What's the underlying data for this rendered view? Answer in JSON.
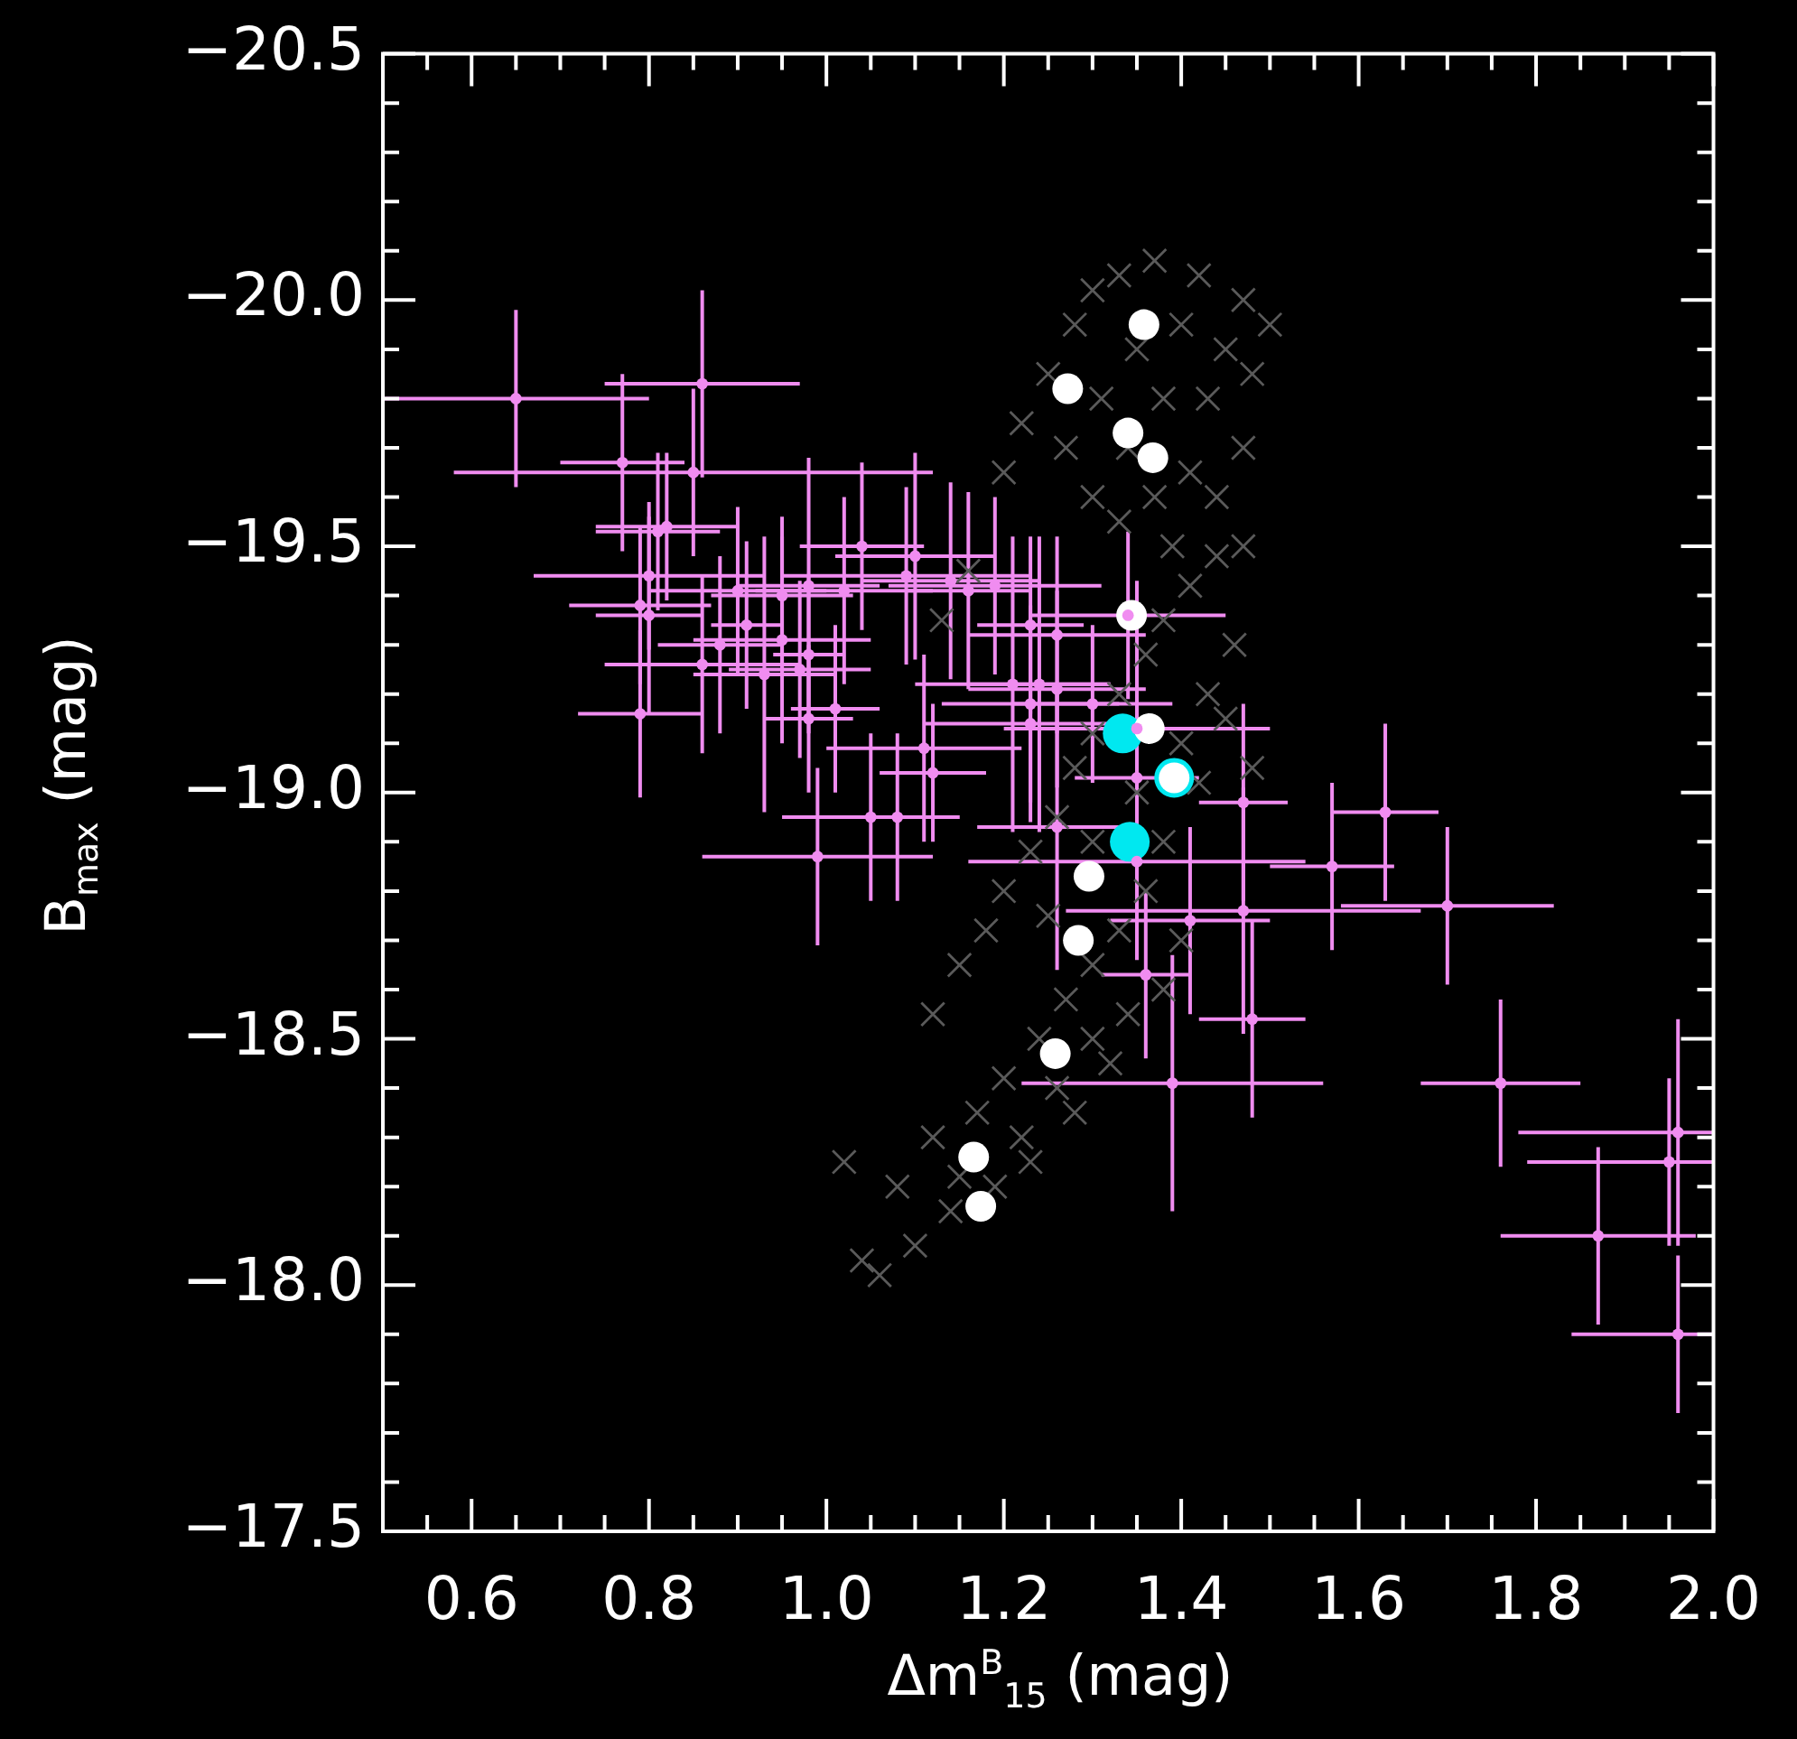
{
  "chart_data": {
    "type": "scatter",
    "xlabel": "Δm$^{B}$$_{15}$ (mag)",
    "ylabel": "B$_{max}$ (mag)",
    "xlim": [
      0.5,
      2.0
    ],
    "ylim": [
      -17.5,
      -20.5
    ],
    "xticks": [
      0.6,
      0.8,
      {
        "value": 1.0,
        "label": "1.0"
      },
      1.2,
      1.4,
      1.6,
      1.8,
      {
        "value": 2.0,
        "label": "2.0"
      }
    ],
    "yticks": [
      {
        "value": -20.5,
        "label": "−20.5"
      },
      {
        "value": -20.0,
        "label": "−20.0"
      },
      {
        "value": -19.5,
        "label": "−19.5"
      },
      {
        "value": -19.0,
        "label": "−19.0"
      },
      {
        "value": -18.5,
        "label": "−18.5"
      },
      {
        "value": -18.0,
        "label": "−18.0"
      },
      {
        "value": -17.5,
        "label": "−17.5"
      }
    ],
    "grid": false,
    "legend": false,
    "series": [
      {
        "color": "#5a5a5a",
        "marker": "cross",
        "x": [
          1.2,
          1.22,
          1.25,
          1.28,
          1.3,
          1.33,
          1.37,
          1.42,
          1.47,
          1.5,
          1.27,
          1.31,
          1.35,
          1.4,
          1.45,
          1.48,
          1.3,
          1.34,
          1.38,
          1.43,
          1.47,
          1.33,
          1.37,
          1.41,
          1.44,
          1.39,
          1.13,
          1.16,
          1.12,
          1.15,
          1.18,
          1.2,
          1.23,
          1.26,
          1.28,
          1.3,
          1.33,
          1.36,
          1.38,
          1.41,
          1.44,
          1.47,
          1.25,
          1.3,
          1.35,
          1.4,
          1.43,
          1.46,
          1.38,
          1.42,
          1.48,
          1.45,
          1.02,
          1.04,
          1.06,
          1.1,
          1.14,
          1.08,
          1.12,
          1.17,
          1.2,
          1.24,
          1.27,
          1.3,
          1.33,
          1.36,
          1.22,
          1.26,
          1.3,
          1.34,
          1.38,
          1.4,
          1.15,
          1.19,
          1.23,
          1.28,
          1.32
        ],
        "values": [
          -19.65,
          -19.75,
          -19.85,
          -19.95,
          -20.02,
          -20.05,
          -20.08,
          -20.05,
          -20.0,
          -19.95,
          -19.7,
          -19.8,
          -19.9,
          -19.95,
          -19.9,
          -19.85,
          -19.6,
          -19.7,
          -19.8,
          -19.8,
          -19.7,
          -19.55,
          -19.6,
          -19.65,
          -19.6,
          -19.5,
          -19.35,
          -19.45,
          -18.55,
          -18.65,
          -18.72,
          -18.8,
          -18.88,
          -18.95,
          -19.05,
          -19.12,
          -19.2,
          -19.28,
          -19.35,
          -19.42,
          -19.48,
          -19.5,
          -18.75,
          -18.9,
          -19.0,
          -19.1,
          -19.2,
          -19.3,
          -18.9,
          -19.02,
          -19.05,
          -19.15,
          -18.25,
          -18.05,
          -18.02,
          -18.08,
          -18.15,
          -18.2,
          -18.3,
          -18.35,
          -18.42,
          -18.5,
          -18.58,
          -18.65,
          -18.72,
          -18.8,
          -18.3,
          -18.4,
          -18.5,
          -18.55,
          -18.6,
          -18.7,
          -18.22,
          -18.2,
          -18.25,
          -18.35,
          -18.45
        ]
      },
      {
        "color": "#00e8f0",
        "marker": "circle",
        "x": [
          1.334,
          1.342,
          1.392
        ],
        "values": [
          -19.12,
          -18.9,
          -19.03
        ]
      },
      {
        "color": "#ffffff",
        "marker": "circle",
        "x": [
          1.358,
          1.272,
          1.34,
          1.368,
          1.344,
          1.364,
          1.392,
          1.296,
          1.284,
          1.258,
          1.166,
          1.174
        ],
        "values": [
          -19.95,
          -19.82,
          -19.73,
          -19.68,
          -19.36,
          -19.13,
          -19.03,
          -18.83,
          -18.7,
          -18.47,
          -18.26,
          -18.16
        ]
      },
      {
        "color": "#f08cf0",
        "marker": "circle",
        "x": [
          0.65,
          0.86,
          0.77,
          0.85,
          1.04,
          0.81,
          0.82,
          0.79,
          0.8,
          0.79,
          0.86,
          0.88,
          0.9,
          0.91,
          0.93,
          0.95,
          0.95,
          0.98,
          0.98,
          0.97,
          0.98,
          1.01,
          1.02,
          1.05,
          0.99,
          0.8,
          1.1,
          1.09,
          1.14,
          1.16,
          1.19,
          1.11,
          1.12,
          1.08,
          1.23,
          1.26,
          1.34,
          1.21,
          1.24,
          1.26,
          1.23,
          1.3,
          1.23,
          1.35,
          1.35,
          1.26,
          1.35,
          1.47,
          1.47,
          1.41,
          1.63,
          1.57,
          1.7,
          1.48,
          1.76,
          1.96,
          1.95,
          1.87,
          1.96,
          1.36,
          1.39
        ],
        "values": [
          -19.8,
          -19.83,
          -19.67,
          -19.65,
          -19.5,
          -19.53,
          -19.54,
          -19.38,
          -19.36,
          -19.16,
          -19.26,
          -19.3,
          -19.41,
          -19.34,
          -19.24,
          -19.31,
          -19.4,
          -19.42,
          -19.28,
          -19.25,
          -19.15,
          -19.17,
          -19.41,
          -18.95,
          -18.87,
          -19.44,
          -19.48,
          -19.44,
          -19.43,
          -19.41,
          -19.42,
          -19.09,
          -19.04,
          -18.95,
          -19.34,
          -19.32,
          -19.36,
          -19.22,
          -19.22,
          -19.21,
          -19.18,
          -19.18,
          -19.14,
          -19.13,
          -19.03,
          -18.93,
          -18.86,
          -18.98,
          -18.76,
          -18.74,
          -18.96,
          -18.85,
          -18.77,
          -18.54,
          -18.41,
          -18.31,
          -18.25,
          -18.1,
          -17.9,
          -18.63,
          -18.41
        ],
        "xerrors": [
          0.15,
          0.11,
          0.07,
          0.27,
          0.07,
          0.07,
          0.08,
          0.08,
          0.06,
          0.07,
          0.11,
          0.07,
          0.1,
          0.04,
          0.08,
          0.1,
          0.08,
          0.08,
          0.04,
          0.08,
          0.05,
          0.05,
          0.1,
          0.1,
          0.13,
          0.13,
          0.09,
          0.14,
          0.1,
          0.07,
          0.12,
          0.11,
          0.06,
          0.07,
          0.06,
          0.1,
          0.11,
          0.11,
          0.08,
          0.1,
          0.1,
          0.09,
          0.12,
          0.15,
          0.07,
          0.09,
          0.19,
          0.05,
          0.2,
          0.09,
          0.06,
          0.07,
          0.12,
          0.06,
          0.09,
          [
            1.78,
            2.0
          ],
          [
            1.79,
            2.0
          ],
          0.11,
          [
            1.84,
            2.0
          ],
          0.05,
          0.17
        ],
        "errors": [
          0.18,
          0.19,
          0.18,
          0.17,
          0.17,
          0.16,
          0.15,
          0.16,
          0.2,
          0.17,
          0.18,
          0.18,
          0.17,
          0.17,
          0.28,
          0.21,
          0.16,
          0.26,
          0.16,
          0.18,
          0.15,
          0.17,
          0.19,
          0.17,
          0.18,
          0.15,
          0.21,
          0.18,
          0.2,
          0.2,
          0.18,
          0.19,
          0.14,
          0.17,
          0.18,
          0.2,
          0.17,
          0.3,
          0.3,
          0.2,
          0.2,
          0.16,
          0.2,
          0.3,
          0.2,
          0.29,
          0.2,
          0.2,
          0.25,
          0.19,
          0.18,
          0.17,
          0.16,
          0.2,
          0.17,
          0.23,
          0.17,
          0.18,
          0.16,
          0.17,
          0.26
        ]
      }
    ]
  }
}
